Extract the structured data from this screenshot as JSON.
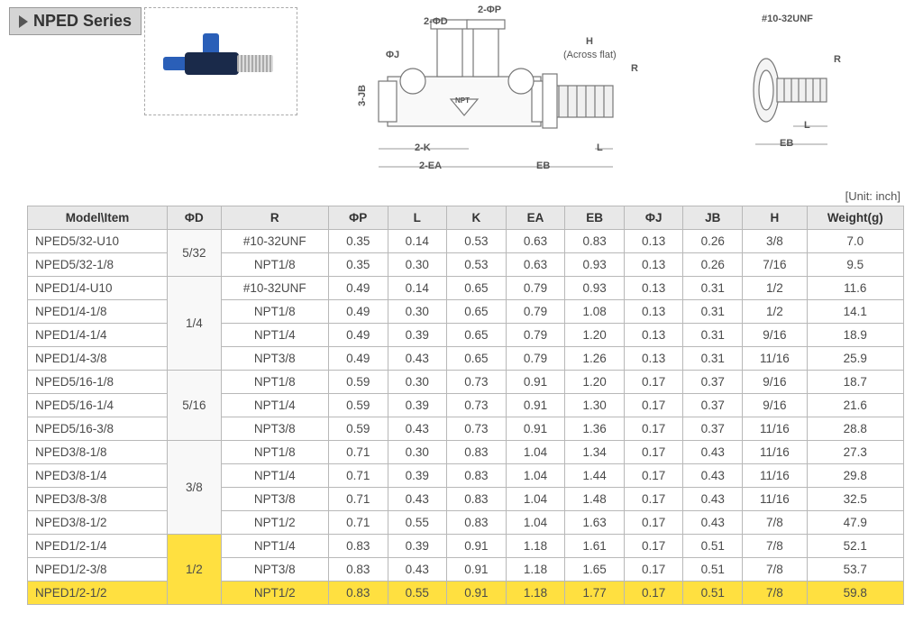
{
  "series_name": "NPED Series",
  "unit_label": "[Unit: inch]",
  "diagram": {
    "labels": {
      "top1": "2-ΦP",
      "top2": "2-ΦD",
      "left": "ΦJ",
      "leftv": "3-JB",
      "h": "H",
      "hflat": "(Across flat)",
      "r": "R",
      "k": "2-K",
      "ea": "2-EA",
      "eb": "EB",
      "l": "L",
      "unf": "#10-32UNF",
      "r2": "R",
      "l2": "L",
      "eb2": "EB",
      "npt": "NPT"
    }
  },
  "table": {
    "columns": [
      "Model\\Item",
      "ΦD",
      "R",
      "ΦP",
      "L",
      "K",
      "EA",
      "EB",
      "ΦJ",
      "JB",
      "H",
      "Weight(g)"
    ],
    "groups": [
      {
        "od": "5/32",
        "od_highlight": false,
        "rows": [
          {
            "model": "NPED5/32-U10",
            "r": "#10-32UNF",
            "op": "0.35",
            "l": "0.14",
            "k": "0.53",
            "ea": "0.63",
            "eb": "0.83",
            "oj": "0.13",
            "jb": "0.26",
            "h": "3/8",
            "w": "7.0",
            "hl": false
          },
          {
            "model": "NPED5/32-1/8",
            "r": "NPT1/8",
            "op": "0.35",
            "l": "0.30",
            "k": "0.53",
            "ea": "0.63",
            "eb": "0.93",
            "oj": "0.13",
            "jb": "0.26",
            "h": "7/16",
            "w": "9.5",
            "hl": false
          }
        ]
      },
      {
        "od": "1/4",
        "od_highlight": false,
        "rows": [
          {
            "model": "NPED1/4-U10",
            "r": "#10-32UNF",
            "op": "0.49",
            "l": "0.14",
            "k": "0.65",
            "ea": "0.79",
            "eb": "0.93",
            "oj": "0.13",
            "jb": "0.31",
            "h": "1/2",
            "w": "11.6",
            "hl": false
          },
          {
            "model": "NPED1/4-1/8",
            "r": "NPT1/8",
            "op": "0.49",
            "l": "0.30",
            "k": "0.65",
            "ea": "0.79",
            "eb": "1.08",
            "oj": "0.13",
            "jb": "0.31",
            "h": "1/2",
            "w": "14.1",
            "hl": false
          },
          {
            "model": "NPED1/4-1/4",
            "r": "NPT1/4",
            "op": "0.49",
            "l": "0.39",
            "k": "0.65",
            "ea": "0.79",
            "eb": "1.20",
            "oj": "0.13",
            "jb": "0.31",
            "h": "9/16",
            "w": "18.9",
            "hl": false
          },
          {
            "model": "NPED1/4-3/8",
            "r": "NPT3/8",
            "op": "0.49",
            "l": "0.43",
            "k": "0.65",
            "ea": "0.79",
            "eb": "1.26",
            "oj": "0.13",
            "jb": "0.31",
            "h": "11/16",
            "w": "25.9",
            "hl": false
          }
        ]
      },
      {
        "od": "5/16",
        "od_highlight": false,
        "rows": [
          {
            "model": "NPED5/16-1/8",
            "r": "NPT1/8",
            "op": "0.59",
            "l": "0.30",
            "k": "0.73",
            "ea": "0.91",
            "eb": "1.20",
            "oj": "0.17",
            "jb": "0.37",
            "h": "9/16",
            "w": "18.7",
            "hl": false
          },
          {
            "model": "NPED5/16-1/4",
            "r": "NPT1/4",
            "op": "0.59",
            "l": "0.39",
            "k": "0.73",
            "ea": "0.91",
            "eb": "1.30",
            "oj": "0.17",
            "jb": "0.37",
            "h": "9/16",
            "w": "21.6",
            "hl": false
          },
          {
            "model": "NPED5/16-3/8",
            "r": "NPT3/8",
            "op": "0.59",
            "l": "0.43",
            "k": "0.73",
            "ea": "0.91",
            "eb": "1.36",
            "oj": "0.17",
            "jb": "0.37",
            "h": "11/16",
            "w": "28.8",
            "hl": false
          }
        ]
      },
      {
        "od": "3/8",
        "od_highlight": false,
        "rows": [
          {
            "model": "NPED3/8-1/8",
            "r": "NPT1/8",
            "op": "0.71",
            "l": "0.30",
            "k": "0.83",
            "ea": "1.04",
            "eb": "1.34",
            "oj": "0.17",
            "jb": "0.43",
            "h": "11/16",
            "w": "27.3",
            "hl": false
          },
          {
            "model": "NPED3/8-1/4",
            "r": "NPT1/4",
            "op": "0.71",
            "l": "0.39",
            "k": "0.83",
            "ea": "1.04",
            "eb": "1.44",
            "oj": "0.17",
            "jb": "0.43",
            "h": "11/16",
            "w": "29.8",
            "hl": false
          },
          {
            "model": "NPED3/8-3/8",
            "r": "NPT3/8",
            "op": "0.71",
            "l": "0.43",
            "k": "0.83",
            "ea": "1.04",
            "eb": "1.48",
            "oj": "0.17",
            "jb": "0.43",
            "h": "11/16",
            "w": "32.5",
            "hl": false
          },
          {
            "model": "NPED3/8-1/2",
            "r": "NPT1/2",
            "op": "0.71",
            "l": "0.55",
            "k": "0.83",
            "ea": "1.04",
            "eb": "1.63",
            "oj": "0.17",
            "jb": "0.43",
            "h": "7/8",
            "w": "47.9",
            "hl": false
          }
        ]
      },
      {
        "od": "1/2",
        "od_highlight": true,
        "rows": [
          {
            "model": "NPED1/2-1/4",
            "r": "NPT1/4",
            "op": "0.83",
            "l": "0.39",
            "k": "0.91",
            "ea": "1.18",
            "eb": "1.61",
            "oj": "0.17",
            "jb": "0.51",
            "h": "7/8",
            "w": "52.1",
            "hl": false
          },
          {
            "model": "NPED1/2-3/8",
            "r": "NPT3/8",
            "op": "0.83",
            "l": "0.43",
            "k": "0.91",
            "ea": "1.18",
            "eb": "1.65",
            "oj": "0.17",
            "jb": "0.51",
            "h": "7/8",
            "w": "53.7",
            "hl": false
          },
          {
            "model": "NPED1/2-1/2",
            "r": "NPT1/2",
            "op": "0.83",
            "l": "0.55",
            "k": "0.91",
            "ea": "1.18",
            "eb": "1.77",
            "oj": "0.17",
            "jb": "0.51",
            "h": "7/8",
            "w": "59.8",
            "hl": true
          }
        ]
      }
    ],
    "col_widths": [
      "130px",
      "50px",
      "100px",
      "55px",
      "55px",
      "55px",
      "55px",
      "55px",
      "55px",
      "55px",
      "60px",
      "90px"
    ]
  },
  "colors": {
    "highlight": "#ffe040",
    "header_bg": "#e8e8e8",
    "border": "#b8b8b8",
    "text": "#4a4a4a"
  }
}
